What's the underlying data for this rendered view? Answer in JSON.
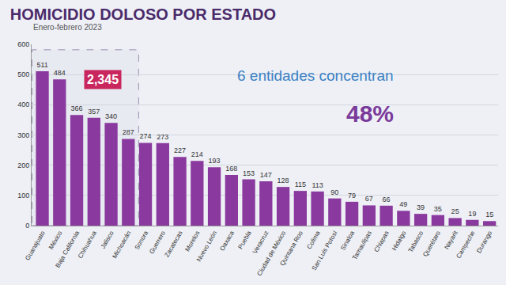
{
  "chart_data": {
    "type": "bar",
    "title": "HOMICIDIO DOLOSO POR ESTADO",
    "subtitle": "Enero-febrero 2023",
    "categories": [
      "Guanajuato",
      "México",
      "Baja California",
      "Chihuahua",
      "Jalisco",
      "Michoacán",
      "Sonora",
      "Guerrero",
      "Zacatecas",
      "Morelos",
      "Nuevo León",
      "Oaxaca",
      "Puebla",
      "Veracruz",
      "Ciudad de México",
      "Quintana Roo",
      "Colima",
      "San Luis Potosí",
      "Sinaloa",
      "Tamaulipas",
      "Chiapas",
      "Hidalgo",
      "Tabasco",
      "Querétaro",
      "Nayarit",
      "Campeche",
      "Durango"
    ],
    "values": [
      511,
      484,
      366,
      357,
      340,
      287,
      274,
      273,
      227,
      214,
      193,
      168,
      153,
      147,
      128,
      115,
      113,
      90,
      79,
      67,
      66,
      49,
      39,
      35,
      25,
      19,
      15
    ],
    "color": "#8a3a9e",
    "ylim": [
      0,
      600
    ],
    "yticks": [
      0,
      100,
      200,
      300,
      400,
      500,
      600
    ],
    "grid": true,
    "data_labels": true,
    "annotations": [
      {
        "text": "2,345",
        "color": "#c8265c"
      },
      {
        "text": "6 entidades concentran",
        "color": "#3b82c4"
      },
      {
        "text": "48%",
        "color": "#7a3a9a"
      }
    ]
  }
}
